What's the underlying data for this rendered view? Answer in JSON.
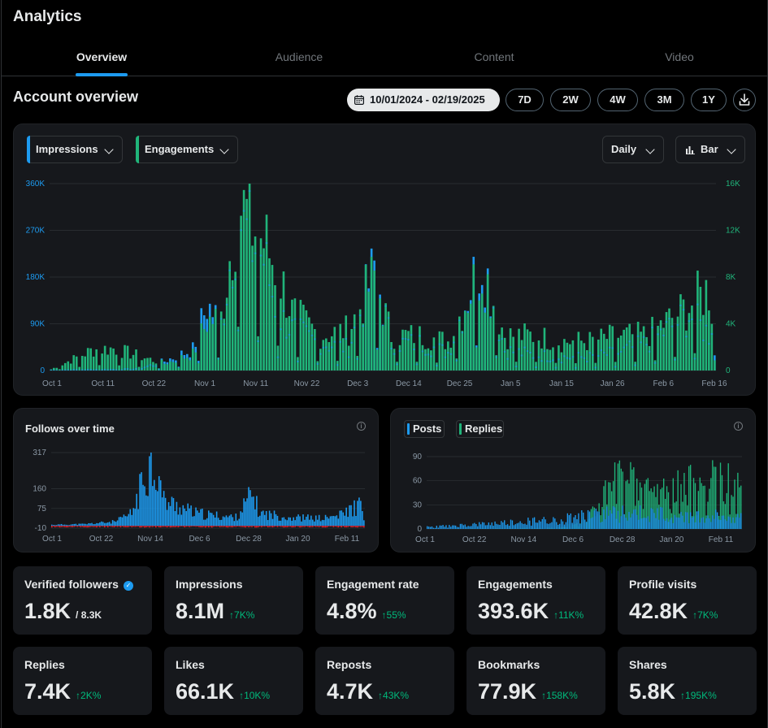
{
  "app": {
    "title": "Analytics"
  },
  "tabs": [
    {
      "label": "Overview",
      "active": true
    },
    {
      "label": "Audience",
      "active": false
    },
    {
      "label": "Content",
      "active": false
    },
    {
      "label": "Video",
      "active": false
    }
  ],
  "overview": {
    "title": "Account overview",
    "date_range": "10/01/2024 - 02/19/2025",
    "ranges": [
      "7D",
      "2W",
      "4W",
      "3M",
      "1Y"
    ]
  },
  "main_chart": {
    "metric_left": "Impressions",
    "metric_right": "Engagements",
    "interval": "Daily",
    "chart_style": "Bar",
    "colors": {
      "impressions": "#1d9bf0",
      "engagements": "#20b47a"
    }
  },
  "follows_card": {
    "title": "Follows over time"
  },
  "posts_card": {
    "legend_posts": "Posts",
    "legend_replies": "Replies"
  },
  "stats": [
    {
      "label": "Verified followers",
      "value": "1.8K",
      "sub": "/ 8.3K",
      "change": "",
      "verified": true
    },
    {
      "label": "Impressions",
      "value": "8.1M",
      "change": "↑7K%"
    },
    {
      "label": "Engagement rate",
      "value": "4.8%",
      "change": "↑55%"
    },
    {
      "label": "Engagements",
      "value": "393.6K",
      "change": "↑11K%"
    },
    {
      "label": "Profile visits",
      "value": "42.8K",
      "change": "↑7K%"
    },
    {
      "label": "Replies",
      "value": "7.4K",
      "change": "↑2K%"
    },
    {
      "label": "Likes",
      "value": "66.1K",
      "change": "↑10K%"
    },
    {
      "label": "Reposts",
      "value": "4.7K",
      "change": "↑43K%"
    },
    {
      "label": "Bookmarks",
      "value": "77.9K",
      "change": "↑158K%"
    },
    {
      "label": "Shares",
      "value": "5.8K",
      "change": "↑195K%"
    }
  ],
  "chart_data": [
    {
      "type": "bar",
      "x_labels": [
        "Oct 1",
        "Oct 11",
        "Oct 22",
        "Nov 1",
        "Nov 11",
        "Nov 22",
        "Dec 3",
        "Dec 14",
        "Dec 25",
        "Jan 5",
        "Jan 15",
        "Jan 26",
        "Feb 6",
        "Feb 16"
      ],
      "y_left_ticks": [
        "360K",
        "270K",
        "180K",
        "90K",
        "0"
      ],
      "y_right_ticks": [
        "16K",
        "12K",
        "8K",
        "4K",
        "0"
      ],
      "ylim_left": [
        0,
        360000
      ],
      "ylim_right": [
        0,
        16000
      ],
      "series": [
        {
          "name": "Impressions",
          "color": "#1d9bf0",
          "key_points": [
            [
              0,
              2000
            ],
            [
              15,
              3000
            ],
            [
              30,
              4000
            ],
            [
              40,
              20000
            ],
            [
              50,
              45000
            ],
            [
              55,
              140000
            ],
            [
              60,
              100000
            ],
            [
              66,
              350000
            ],
            [
              68,
              300000
            ],
            [
              75,
              240000
            ],
            [
              80,
              120000
            ],
            [
              85,
              90000
            ],
            [
              95,
              60000
            ],
            [
              105,
              50000
            ],
            [
              114,
              220000
            ],
            [
              120,
              60000
            ],
            [
              130,
              60000
            ],
            [
              140,
              40000
            ],
            [
              152,
              250000
            ],
            [
              160,
              45000
            ],
            [
              170,
              35000
            ],
            [
              180,
              30000
            ],
            [
              190,
              30000
            ],
            [
              200,
              40000
            ],
            [
              210,
              60000
            ],
            [
              225,
              120000
            ],
            [
              232,
              80000
            ],
            [
              234,
              130000
            ]
          ]
        },
        {
          "name": "Engagements",
          "color": "#20b47a",
          "key_points": [
            [
              0,
              100
            ],
            [
              15,
              1800
            ],
            [
              22,
              1900
            ],
            [
              40,
              600
            ],
            [
              50,
              1400
            ],
            [
              55,
              4200
            ],
            [
              60,
              4500
            ],
            [
              66,
              15000
            ],
            [
              68,
              13500
            ],
            [
              75,
              11000
            ],
            [
              80,
              8500
            ],
            [
              85,
              5000
            ],
            [
              95,
              3000
            ],
            [
              105,
              3500
            ],
            [
              114,
              8000
            ],
            [
              120,
              3000
            ],
            [
              130,
              3000
            ],
            [
              140,
              2500
            ],
            [
              152,
              9000
            ],
            [
              160,
              3000
            ],
            [
              170,
              3000
            ],
            [
              180,
              2500
            ],
            [
              190,
              2500
            ],
            [
              200,
              3000
            ],
            [
              210,
              3000
            ],
            [
              225,
              5500
            ],
            [
              232,
              7000
            ],
            [
              234,
              3500
            ]
          ]
        }
      ]
    },
    {
      "type": "bar",
      "title": "Follows over time",
      "x_labels": [
        "Oct 1",
        "Oct 22",
        "Nov 14",
        "Dec 6",
        "Dec 28",
        "Jan 20",
        "Feb 11"
      ],
      "y_ticks": [
        "317",
        "160",
        "75",
        "-10"
      ],
      "ylim": [
        -10,
        317
      ],
      "series": [
        {
          "name": "",
          "color": "#1d9bf0",
          "key_points": [
            [
              0,
              5
            ],
            [
              20,
              8
            ],
            [
              40,
              20
            ],
            [
              50,
              60
            ],
            [
              60,
              280
            ],
            [
              62,
              310
            ],
            [
              66,
              250
            ],
            [
              70,
              120
            ],
            [
              80,
              90
            ],
            [
              90,
              60
            ],
            [
              100,
              50
            ],
            [
              115,
              40
            ],
            [
              125,
              150
            ],
            [
              130,
              60
            ],
            [
              150,
              40
            ],
            [
              170,
              35
            ],
            [
              180,
              50
            ],
            [
              192,
              100
            ],
            [
              195,
              50
            ]
          ]
        },
        {
          "name": "",
          "color": "#f4212e",
          "key_points": [
            [
              0,
              -5
            ],
            [
              195,
              -5
            ]
          ]
        }
      ]
    },
    {
      "type": "bar",
      "x_labels": [
        "Oct 1",
        "Oct 22",
        "Nov 14",
        "Dec 6",
        "Dec 28",
        "Jan 20",
        "Feb 11"
      ],
      "y_ticks": [
        "90",
        "60",
        "30",
        "0"
      ],
      "ylim": [
        0,
        90
      ],
      "series": [
        {
          "name": "Posts",
          "color": "#1d9bf0",
          "key_points": [
            [
              0,
              3
            ],
            [
              40,
              8
            ],
            [
              80,
              15
            ],
            [
              110,
              25
            ],
            [
              140,
              25
            ],
            [
              170,
              20
            ],
            [
              200,
              20
            ]
          ]
        },
        {
          "name": "Replies",
          "color": "#20b47a",
          "key_points": [
            [
              0,
              0
            ],
            [
              80,
              2
            ],
            [
              100,
              15
            ],
            [
              115,
              70
            ],
            [
              120,
              85
            ],
            [
              140,
              70
            ],
            [
              160,
              70
            ],
            [
              175,
              80
            ],
            [
              190,
              80
            ],
            [
              200,
              60
            ]
          ]
        }
      ]
    }
  ]
}
